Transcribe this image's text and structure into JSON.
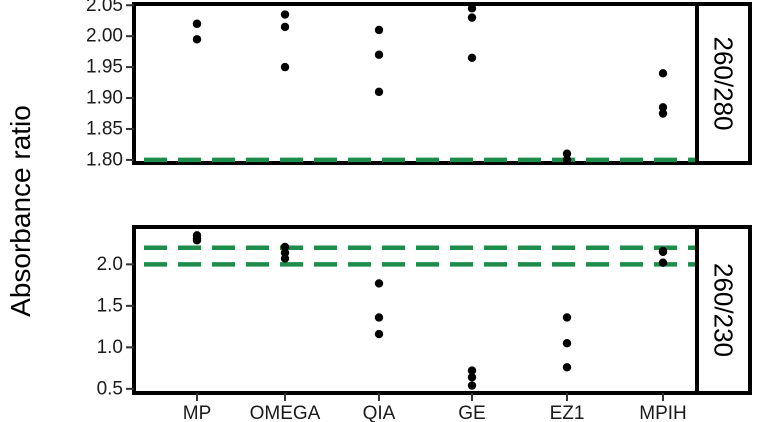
{
  "chart_data": [
    {
      "type": "scatter",
      "panel": "260/280",
      "ylabel": "Absorbance ratio",
      "categories": [
        "MP",
        "OMEGA",
        "QIA",
        "GE",
        "EZ1",
        "MPIH"
      ],
      "ylim": [
        1.795,
        2.052
      ],
      "yticks": [
        "1.80",
        "1.85",
        "1.90",
        "1.95",
        "2.00",
        "2.05"
      ],
      "reference_lines": [
        1.8
      ],
      "reference_color": "#1e8c4a",
      "point_color": "#000000",
      "grid": false,
      "points": [
        {
          "category": "MP",
          "y": 2.02
        },
        {
          "category": "MP",
          "y": 2.02
        },
        {
          "category": "MP",
          "y": 1.995
        },
        {
          "category": "OMEGA",
          "y": 2.035
        },
        {
          "category": "OMEGA",
          "y": 2.015
        },
        {
          "category": "OMEGA",
          "y": 1.95
        },
        {
          "category": "QIA",
          "y": 2.01
        },
        {
          "category": "QIA",
          "y": 1.97
        },
        {
          "category": "QIA",
          "y": 1.91
        },
        {
          "category": "GE",
          "y": 2.045
        },
        {
          "category": "GE",
          "y": 2.03
        },
        {
          "category": "GE",
          "y": 1.965
        },
        {
          "category": "EZ1",
          "y": 1.81
        },
        {
          "category": "EZ1",
          "y": 1.8
        },
        {
          "category": "EZ1",
          "y": 1.8
        },
        {
          "category": "MPIH",
          "y": 1.94
        },
        {
          "category": "MPIH",
          "y": 1.885
        },
        {
          "category": "MPIH",
          "y": 1.875
        }
      ]
    },
    {
      "type": "scatter",
      "panel": "260/230",
      "ylabel": "Absorbance ratio",
      "categories": [
        "MP",
        "OMEGA",
        "QIA",
        "GE",
        "EZ1",
        "MPIH"
      ],
      "ylim": [
        0.45,
        2.45
      ],
      "yticks": [
        "0.5",
        "1.0",
        "1.5",
        "2.0"
      ],
      "reference_lines": [
        2.0,
        2.2
      ],
      "reference_color": "#1e8c4a",
      "point_color": "#000000",
      "grid": false,
      "points": [
        {
          "category": "MP",
          "y": 2.35
        },
        {
          "category": "MP",
          "y": 2.31
        },
        {
          "category": "MP",
          "y": 2.29
        },
        {
          "category": "OMEGA",
          "y": 2.21
        },
        {
          "category": "OMEGA",
          "y": 2.14
        },
        {
          "category": "OMEGA",
          "y": 2.07
        },
        {
          "category": "QIA",
          "y": 1.77
        },
        {
          "category": "QIA",
          "y": 1.36
        },
        {
          "category": "QIA",
          "y": 1.16
        },
        {
          "category": "GE",
          "y": 0.72
        },
        {
          "category": "GE",
          "y": 0.64
        },
        {
          "category": "GE",
          "y": 0.54
        },
        {
          "category": "EZ1",
          "y": 1.36
        },
        {
          "category": "EZ1",
          "y": 1.05
        },
        {
          "category": "EZ1",
          "y": 0.76
        },
        {
          "category": "MPIH",
          "y": 2.16
        },
        {
          "category": "MPIH",
          "y": 2.15
        },
        {
          "category": "MPIH",
          "y": 2.02
        }
      ]
    }
  ]
}
